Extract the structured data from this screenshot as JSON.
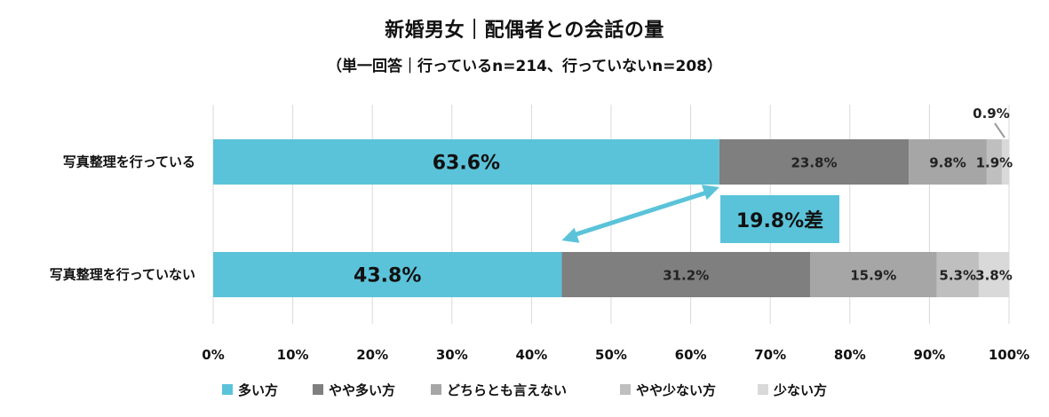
{
  "title": "新婚男女｜配偶者との会話の量",
  "subtitle": "（単一回答｜行っているn=214、行っていないn=208）",
  "colors": {
    "多い方": "#5bc3d9",
    "やや多い方": "#7f7f7f",
    "どちらとも言えない": "#a6a6a6",
    "やや少ない方": "#bfbfbf",
    "少ない方": "#d9d9d9",
    "accent": "#5bc3d9"
  },
  "chart_data": {
    "type": "bar",
    "orientation": "horizontal",
    "stacked": true,
    "categories": [
      "写真整理を行っている",
      "写真整理を行っていない"
    ],
    "series": [
      {
        "name": "多い方",
        "values": [
          63.6,
          43.8
        ],
        "labels": [
          "63.6%",
          "43.8%"
        ]
      },
      {
        "name": "やや多い方",
        "values": [
          23.8,
          31.2
        ],
        "labels": [
          "23.8%",
          "31.2%"
        ]
      },
      {
        "name": "どちらとも言えない",
        "values": [
          9.8,
          15.9
        ],
        "labels": [
          "9.8%",
          "15.9%"
        ]
      },
      {
        "name": "やや少ない方",
        "values": [
          1.9,
          5.3
        ],
        "labels": [
          "1.9%",
          "5.3%"
        ]
      },
      {
        "name": "少ない方",
        "values": [
          0.9,
          3.8
        ],
        "labels": [
          "0.9%",
          "3.8%"
        ]
      }
    ],
    "xlim": [
      0,
      100
    ],
    "x_ticks": [
      "0%",
      "10%",
      "20%",
      "30%",
      "40%",
      "50%",
      "60%",
      "70%",
      "80%",
      "90%",
      "100%"
    ],
    "grid": true,
    "legend": "bottom",
    "annotation": "19.8%差"
  }
}
